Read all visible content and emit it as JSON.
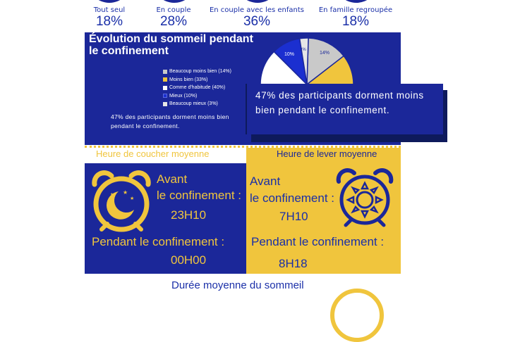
{
  "household": [
    {
      "label": "Tout seul",
      "pct": "18%"
    },
    {
      "label": "En couple",
      "pct": "28%"
    },
    {
      "label": "En couple avec les enfants",
      "pct": "36%"
    },
    {
      "label": "En famille regroupée",
      "pct": "18%"
    }
  ],
  "sleep_evolution": {
    "title": "Évolution du sommeil pendant le confinement",
    "legend": [
      {
        "label": "Beaucoup moins bien (14%)",
        "color": "#c9c9c9"
      },
      {
        "label": "Moins bien (33%)",
        "color": "#f0c53d"
      },
      {
        "label": "Comme d'habitude (40%)",
        "color": "#ffffff"
      },
      {
        "label": "Mieux (10%)",
        "color": "#1b2fd0"
      },
      {
        "label": "Beaucoup mieux (3%)",
        "color": "#e6e6e6"
      }
    ],
    "summary": "47% des participants dorment moins bien pendant le confinement.",
    "callout": "47% des participants dorment moins bien pendant le confinement.",
    "pie_labels": {
      "mieux": "10%",
      "beaucoup_mieux": "3%",
      "beaucoup_moins_bien": "14%"
    }
  },
  "chart_data": {
    "type": "pie",
    "categories": [
      "Beaucoup moins bien",
      "Moins bien",
      "Comme d'habitude",
      "Mieux",
      "Beaucoup mieux"
    ],
    "values": [
      14,
      33,
      40,
      10,
      3
    ]
  },
  "bedtime": {
    "title": "Heure de coucher moyenne",
    "before_label": "Avant",
    "before_label2": "le confinement :",
    "before_value": "23H10",
    "during_label": "Pendant le confinement :",
    "during_value": "00H00"
  },
  "wakeup": {
    "title": "Heure de lever moyenne",
    "before_label": "Avant",
    "before_label2": "le confinement :",
    "before_value": "7H10",
    "during_label": "Pendant le confinement :",
    "during_value": "8H18"
  },
  "duration": {
    "title": "Durée moyenne du sommeil"
  },
  "colors": {
    "navy": "#1b2799",
    "yellow": "#f0c53d"
  }
}
